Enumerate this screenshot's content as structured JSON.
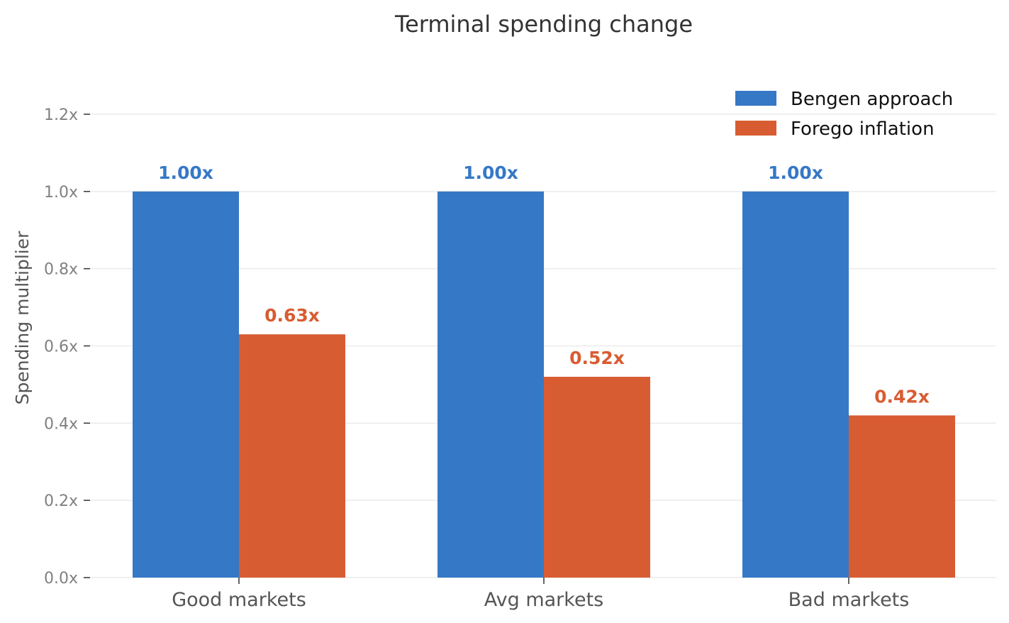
{
  "chart_data": {
    "type": "bar",
    "title": "Terminal spending change",
    "xlabel": "",
    "ylabel": "Spending multiplier",
    "categories": [
      "Good markets",
      "Avg markets",
      "Bad markets"
    ],
    "series": [
      {
        "name": "Bengen approach",
        "color": "#3578c6",
        "values": [
          1.0,
          1.0,
          1.0
        ],
        "labels": [
          "1.00x",
          "1.00x",
          "1.00x"
        ]
      },
      {
        "name": "Forego inflation",
        "color": "#d85c32",
        "values": [
          0.63,
          0.52,
          0.42
        ],
        "labels": [
          "0.63x",
          "0.52x",
          "0.42x"
        ]
      }
    ],
    "ylim": [
      0,
      1.2
    ],
    "yticks": [
      0.0,
      0.2,
      0.4,
      0.6,
      0.8,
      1.0,
      1.2
    ],
    "ytick_labels": [
      "0.0x",
      "0.2x",
      "0.4x",
      "0.6x",
      "0.8x",
      "1.0x",
      "1.2x"
    ],
    "grid": "horizontal",
    "legend_position": "top-right"
  }
}
